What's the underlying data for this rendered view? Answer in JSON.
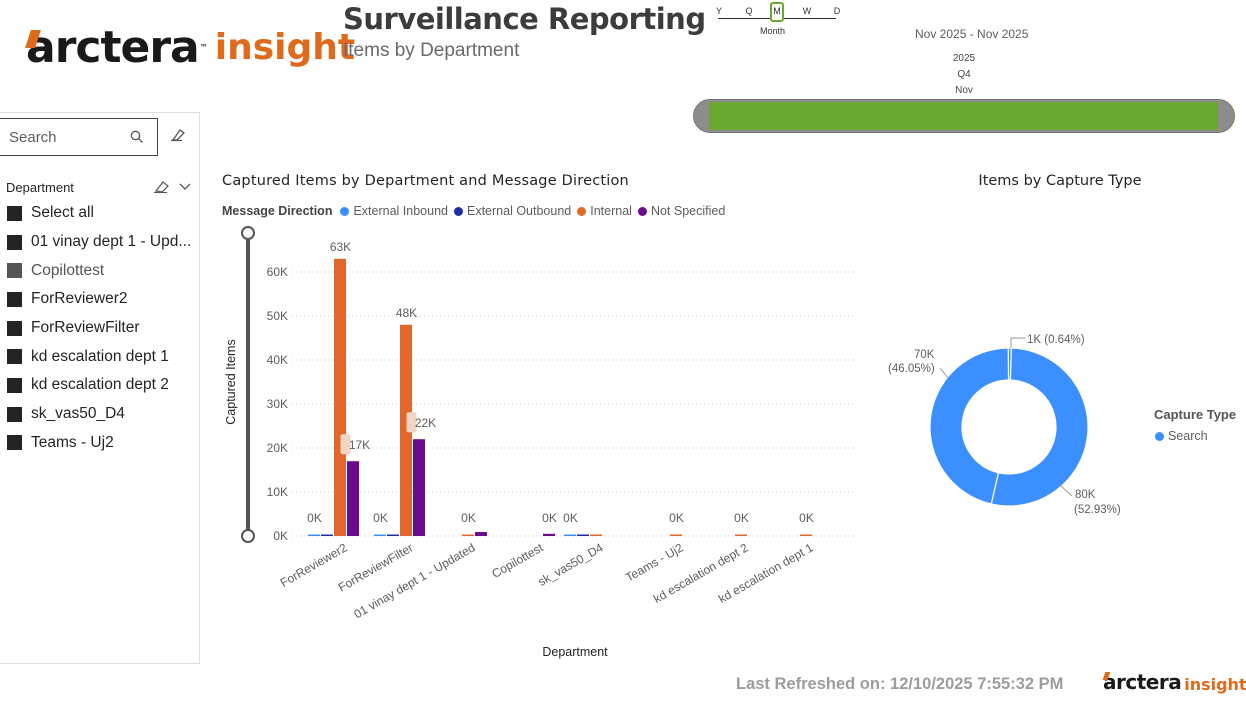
{
  "brand": {
    "name": "arctera",
    "product": "insight",
    "tm": "™"
  },
  "report": {
    "title": "Surveillance Reporting",
    "subtitle": "Items by Department"
  },
  "timeline": {
    "granularity": [
      "Y",
      "Q",
      "M",
      "W",
      "D"
    ],
    "granularity_selected": "M",
    "granularity_label": "Month",
    "range": "Nov 2025 - Nov 2025",
    "year": "2025",
    "quarter": "Q4",
    "month": "Nov",
    "bar_color": "#6aa832"
  },
  "slicer": {
    "search_placeholder": "Search",
    "header": "Department",
    "items": [
      "Select all",
      "01 vinay dept 1 - Upd...",
      "Copilottest",
      "ForReviewer2",
      "ForReviewFilter",
      "kd escalation dept 1",
      "kd escalation dept 2",
      "sk_vas50_D4",
      "Teams - Uj2"
    ]
  },
  "bar_chart": {
    "title": "Captured Items by Department and Message Direction",
    "legend_title": "Message Direction"
  },
  "donut_chart": {
    "title": "Items by Capture Type",
    "legend_title": "Capture Type",
    "labels": {
      "small_val": "1K (0.64%)",
      "left_val": "70K",
      "left_pct": "(46.05%)",
      "right_val": "80K",
      "right_pct": "(52.93%)"
    }
  },
  "footer": {
    "last_refreshed": "Last Refreshed on: 12/10/2025 7:55:32 PM"
  },
  "chart_data": [
    {
      "type": "bar",
      "title": "Captured Items by Department and Message Direction",
      "xlabel": "Department",
      "ylabel": "Captured Items",
      "ylim": [
        0,
        60000
      ],
      "yticks": [
        "0K",
        "10K",
        "20K",
        "30K",
        "40K",
        "50K",
        "60K"
      ],
      "grid": true,
      "legend_position": "top",
      "categories": [
        "ForReviewer2",
        "ForReviewFilter",
        "01 vinay dept 1 - Updated",
        "Copilottest",
        "sk_vas50_D4",
        "Teams - Uj2",
        "kd escalation dept 2",
        "kd escalation dept 1"
      ],
      "series": [
        {
          "name": "External Inbound",
          "color": "#3b8fff",
          "values": [
            150,
            150,
            0,
            0,
            100,
            0,
            0,
            0
          ]
        },
        {
          "name": "External Outbound",
          "color": "#1f2fa3",
          "values": [
            100,
            100,
            0,
            0,
            80,
            0,
            0,
            0
          ]
        },
        {
          "name": "Internal",
          "color": "#e2672a",
          "values": [
            63000,
            48000,
            300,
            0,
            250,
            300,
            300,
            250
          ]
        },
        {
          "name": "Not Specified",
          "color": "#6b0c8c",
          "values": [
            17000,
            22000,
            900,
            500,
            0,
            0,
            0,
            0
          ]
        }
      ],
      "data_labels": [
        {
          "text": "0K",
          "category": 0,
          "series": 0
        },
        {
          "text": "63K",
          "category": 0,
          "series": 2
        },
        {
          "text": "17K",
          "category": 0,
          "series": 3
        },
        {
          "text": "0K",
          "category": 1,
          "series": 0
        },
        {
          "text": "48K",
          "category": 1,
          "series": 2
        },
        {
          "text": "22K",
          "category": 1,
          "series": 3
        },
        {
          "text": "0K",
          "category": 2,
          "series": 2
        },
        {
          "text": "0K",
          "category": 3,
          "series": 3
        },
        {
          "text": "0K",
          "category": 4,
          "series": 0
        },
        {
          "text": "0K",
          "category": 5,
          "series": 2
        },
        {
          "text": "0K",
          "category": 6,
          "series": 2
        },
        {
          "text": "0K",
          "category": 7,
          "series": 2
        }
      ]
    },
    {
      "type": "pie",
      "title": "Items by Capture Type",
      "legend": [
        "Search"
      ],
      "slices": [
        {
          "label": "80K (52.93%)",
          "value": 52.93,
          "color": "#3b8fff"
        },
        {
          "label": "70K (46.05%)",
          "value": 46.05,
          "color": "#3b8fff"
        },
        {
          "label": "1K (0.64%)",
          "value": 0.64,
          "color": "#3b8fff"
        }
      ]
    }
  ]
}
